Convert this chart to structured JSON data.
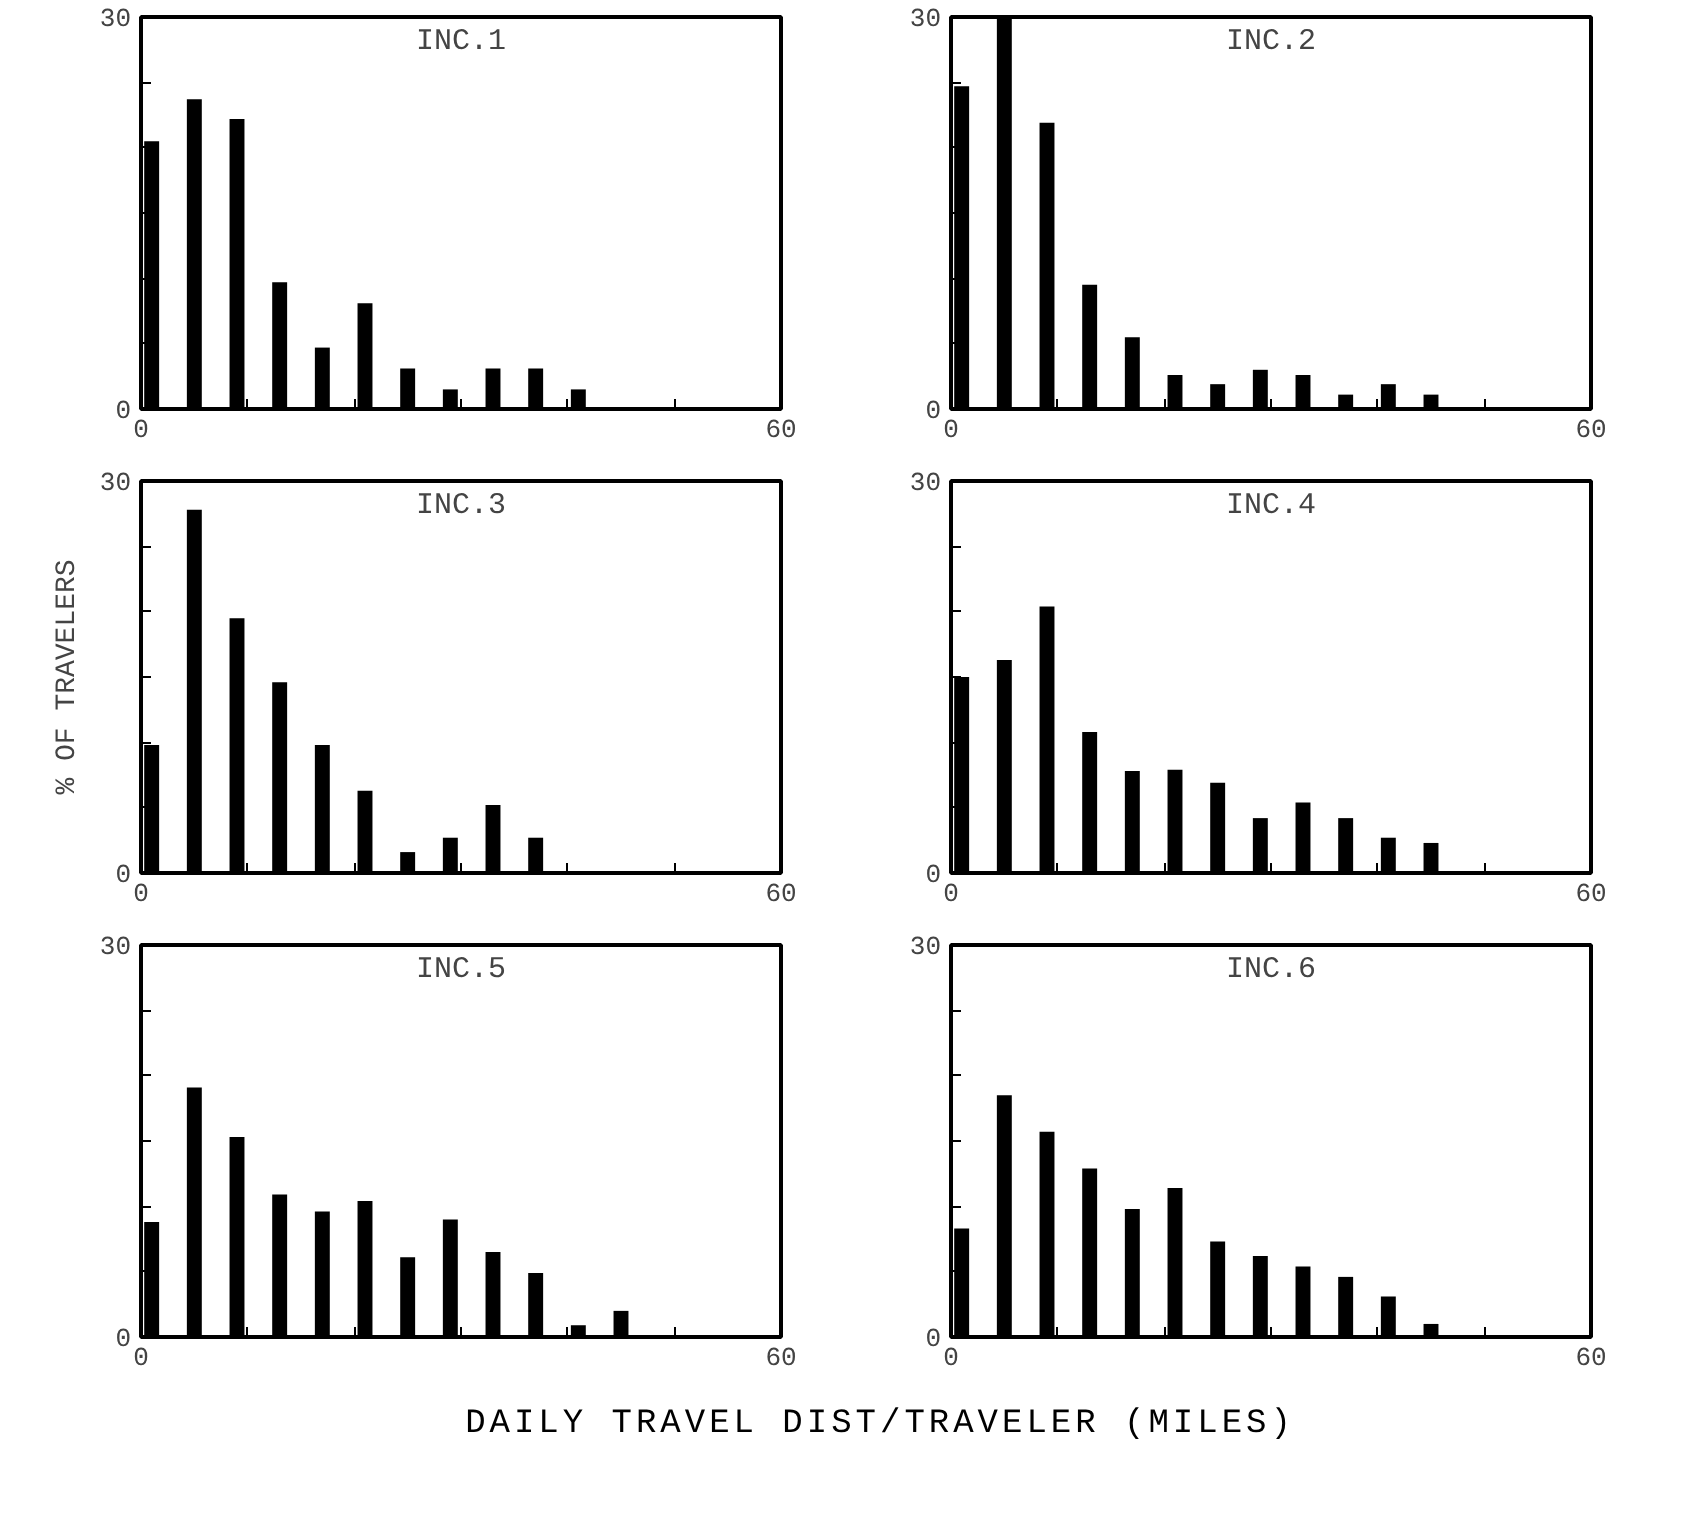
{
  "chart_data": [
    {
      "type": "bar",
      "title": "INC.1",
      "x": [
        1,
        5,
        9,
        13,
        17,
        21,
        25,
        29,
        33,
        37,
        41
      ],
      "values": [
        20.5,
        23.7,
        22.2,
        9.7,
        4.7,
        8.1,
        3.1,
        1.5,
        3.1,
        3.1,
        1.5
      ],
      "color": "#000000",
      "xlim": [
        0,
        60
      ],
      "ylim": [
        0,
        30
      ],
      "xticks": [
        0,
        {
          "value": 10,
          "label": null
        },
        {
          "value": 20,
          "label": null
        },
        {
          "value": 30,
          "label": null
        },
        {
          "value": 40,
          "label": null
        },
        {
          "value": 50,
          "label": null
        },
        60
      ],
      "yticks": [
        0,
        {
          "value": 5,
          "label": null
        },
        {
          "value": 10,
          "label": null
        },
        {
          "value": 15,
          "label": null
        },
        {
          "value": 20,
          "label": null
        },
        {
          "value": 25,
          "label": null
        },
        30
      ],
      "grid": false
    },
    {
      "type": "bar",
      "title": "INC.2",
      "x": [
        1,
        5,
        9,
        13,
        17,
        21,
        25,
        29,
        33,
        37,
        41,
        45
      ],
      "values": [
        24.7,
        30,
        21.9,
        9.5,
        5.5,
        2.6,
        1.9,
        3,
        2.6,
        1.1,
        1.9,
        1.1
      ],
      "color": "#000000",
      "xlim": [
        0,
        60
      ],
      "ylim": [
        0,
        30
      ],
      "xticks": [
        0,
        {
          "value": 10,
          "label": null
        },
        {
          "value": 20,
          "label": null
        },
        {
          "value": 30,
          "label": null
        },
        {
          "value": 40,
          "label": null
        },
        {
          "value": 50,
          "label": null
        },
        60
      ],
      "yticks": [
        0,
        {
          "value": 5,
          "label": null
        },
        {
          "value": 10,
          "label": null
        },
        {
          "value": 15,
          "label": null
        },
        {
          "value": 20,
          "label": null
        },
        {
          "value": 25,
          "label": null
        },
        30
      ],
      "grid": false
    },
    {
      "type": "bar",
      "title": "INC.3",
      "ylabel": "% OF TRAVELERS",
      "x": [
        1,
        5,
        9,
        13,
        17,
        21,
        25,
        29,
        33,
        37
      ],
      "values": [
        9.8,
        27.8,
        19.5,
        14.6,
        9.8,
        6.3,
        1.6,
        2.7,
        5.2,
        2.7
      ],
      "color": "#000000",
      "xlim": [
        0,
        60
      ],
      "ylim": [
        0,
        30
      ],
      "xticks": [
        0,
        {
          "value": 10,
          "label": null
        },
        {
          "value": 20,
          "label": null
        },
        {
          "value": 30,
          "label": null
        },
        {
          "value": 40,
          "label": null
        },
        {
          "value": 50,
          "label": null
        },
        60
      ],
      "yticks": [
        0,
        {
          "value": 5,
          "label": null
        },
        {
          "value": 10,
          "label": null
        },
        {
          "value": 15,
          "label": null
        },
        {
          "value": 20,
          "label": null
        },
        {
          "value": 25,
          "label": null
        },
        30
      ],
      "grid": false
    },
    {
      "type": "bar",
      "title": "INC.4",
      "x": [
        1,
        5,
        9,
        13,
        17,
        21,
        25,
        29,
        33,
        37,
        41,
        45
      ],
      "values": [
        15,
        16.3,
        20.4,
        10.8,
        7.8,
        7.9,
        6.9,
        4.2,
        5.4,
        4.2,
        2.7,
        2.3
      ],
      "color": "#000000",
      "xlim": [
        0,
        60
      ],
      "ylim": [
        0,
        30
      ],
      "xticks": [
        0,
        {
          "value": 10,
          "label": null
        },
        {
          "value": 20,
          "label": null
        },
        {
          "value": 30,
          "label": null
        },
        {
          "value": 40,
          "label": null
        },
        {
          "value": 50,
          "label": null
        },
        60
      ],
      "yticks": [
        0,
        {
          "value": 5,
          "label": null
        },
        {
          "value": 10,
          "label": null
        },
        {
          "value": 15,
          "label": null
        },
        {
          "value": 20,
          "label": null
        },
        {
          "value": 25,
          "label": null
        },
        30
      ],
      "grid": false
    },
    {
      "type": "bar",
      "title": "INC.5",
      "xlabel": "DAILY TRAVEL DIST/TRAVELER (MILES)",
      "x": [
        1,
        5,
        9,
        13,
        17,
        21,
        25,
        29,
        33,
        37,
        41,
        45
      ],
      "values": [
        8.8,
        19.1,
        15.3,
        10.9,
        9.6,
        10.4,
        6.1,
        9,
        6.5,
        4.9,
        0.9,
        2
      ],
      "color": "#000000",
      "xlim": [
        0,
        60
      ],
      "ylim": [
        0,
        30
      ],
      "xticks": [
        0,
        {
          "value": 10,
          "label": null
        },
        {
          "value": 20,
          "label": null
        },
        {
          "value": 30,
          "label": null
        },
        {
          "value": 40,
          "label": null
        },
        {
          "value": 50,
          "label": null
        },
        60
      ],
      "yticks": [
        0,
        {
          "value": 5,
          "label": null
        },
        {
          "value": 10,
          "label": null
        },
        {
          "value": 15,
          "label": null
        },
        {
          "value": 20,
          "label": null
        },
        {
          "value": 25,
          "label": null
        },
        30
      ],
      "grid": false
    },
    {
      "type": "bar",
      "title": "INC.6",
      "x": [
        1,
        5,
        9,
        13,
        17,
        21,
        25,
        29,
        33,
        37,
        41,
        45
      ],
      "values": [
        8.3,
        18.5,
        15.7,
        12.9,
        9.8,
        11.4,
        7.3,
        6.2,
        5.4,
        4.6,
        3.1,
        1
      ],
      "color": "#000000",
      "xlim": [
        0,
        60
      ],
      "ylim": [
        0,
        30
      ],
      "xticks": [
        0,
        {
          "value": 10,
          "label": null
        },
        {
          "value": 20,
          "label": null
        },
        {
          "value": 30,
          "label": null
        },
        {
          "value": 40,
          "label": null
        },
        {
          "value": 50,
          "label": null
        },
        60
      ],
      "yticks": [
        0,
        {
          "value": 5,
          "label": null
        },
        {
          "value": 10,
          "label": null
        },
        {
          "value": 15,
          "label": null
        },
        {
          "value": 20,
          "label": null
        },
        {
          "value": 25,
          "label": null
        },
        30
      ],
      "grid": false
    }
  ]
}
